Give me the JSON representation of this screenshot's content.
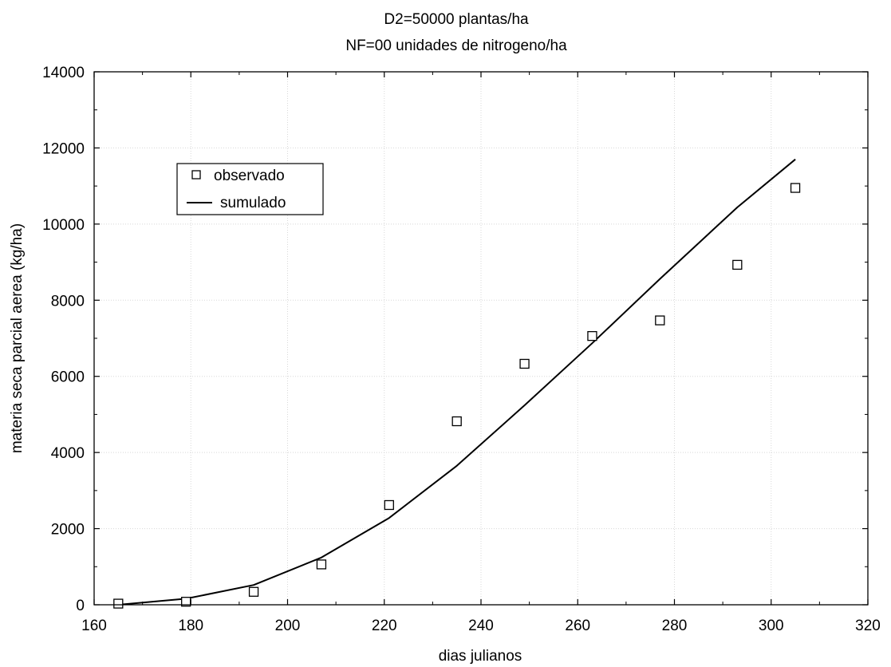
{
  "chart_data": {
    "type": "scatter",
    "title": "D2=50000 plantas/ha",
    "subtitle": "NF=00 unidades de nitrogeno/ha",
    "xlabel": "dias julianos",
    "ylabel": "materia seca parcial aerea (kg/ha)",
    "xlim": [
      160,
      320
    ],
    "ylim": [
      0,
      14000
    ],
    "xticks": [
      160,
      180,
      200,
      220,
      240,
      260,
      280,
      300,
      320
    ],
    "yticks": [
      0,
      2000,
      4000,
      6000,
      8000,
      10000,
      12000,
      14000
    ],
    "grid": true,
    "legend_position": "upper-left",
    "series": [
      {
        "name": "observado",
        "kind": "markers",
        "marker": "open-square",
        "x": [
          165,
          179,
          193,
          207,
          221,
          235,
          249,
          263,
          277,
          293,
          305
        ],
        "y": [
          30,
          80,
          340,
          1060,
          2620,
          4820,
          6330,
          7060,
          7470,
          8930,
          10950
        ]
      },
      {
        "name": "sumulado",
        "kind": "line",
        "x": [
          165,
          179,
          193,
          207,
          221,
          235,
          249,
          263,
          277,
          293,
          305
        ],
        "y": [
          0,
          160,
          520,
          1240,
          2280,
          3650,
          5240,
          6870,
          8560,
          10440,
          11700
        ]
      }
    ],
    "colors": {
      "line": "#000000",
      "marker": "#000000",
      "grid": "#d8d8d8",
      "background": "#ffffff"
    }
  }
}
